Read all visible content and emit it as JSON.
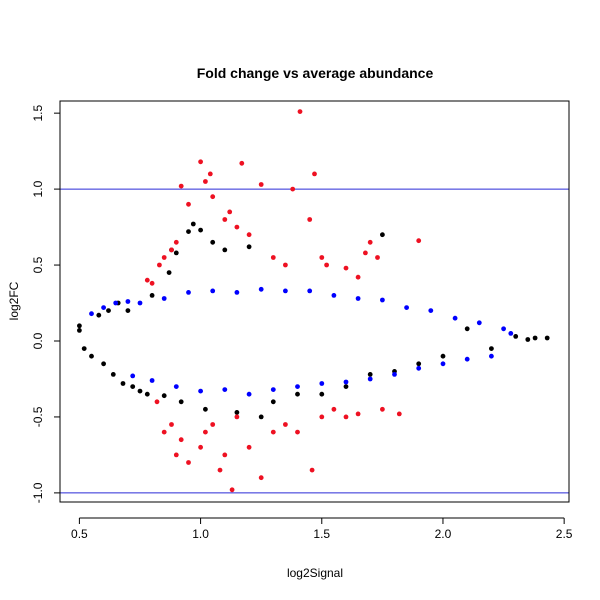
{
  "chart_data": {
    "type": "scatter",
    "title": "Fold change vs average abundance",
    "xlabel": "log2Signal",
    "ylabel": "log2FC",
    "xlim": [
      0.42,
      2.52
    ],
    "ylim": [
      -1.06,
      1.58
    ],
    "x_ticks": [
      "0.5",
      "1.0",
      "1.5",
      "2.0",
      "2.5"
    ],
    "y_ticks": [
      "-1.0",
      "-0.5",
      "0.0",
      "0.5",
      "1.0",
      "1.5"
    ],
    "grid": false,
    "legend": "none",
    "colors": {
      "black": "#000000",
      "blue": "#0000ff",
      "red": "#ee1122",
      "hline": "#2a2ad8"
    },
    "hlines": [
      1.0,
      -1.0
    ],
    "series": [
      {
        "color": "black",
        "points": [
          [
            0.5,
            0.1
          ],
          [
            0.5,
            0.07
          ],
          [
            0.52,
            -0.05
          ],
          [
            0.55,
            -0.1
          ],
          [
            0.58,
            0.17
          ],
          [
            0.6,
            -0.15
          ],
          [
            0.62,
            0.2
          ],
          [
            0.64,
            -0.22
          ],
          [
            0.66,
            0.25
          ],
          [
            0.68,
            -0.28
          ],
          [
            0.7,
            0.2
          ],
          [
            0.72,
            -0.3
          ],
          [
            0.75,
            -0.33
          ],
          [
            0.78,
            -0.35
          ],
          [
            0.8,
            0.3
          ],
          [
            0.85,
            -0.36
          ],
          [
            0.87,
            0.45
          ],
          [
            0.88,
            0.6
          ],
          [
            0.9,
            0.58
          ],
          [
            0.92,
            -0.4
          ],
          [
            0.95,
            0.72
          ],
          [
            0.97,
            0.77
          ],
          [
            1.0,
            0.73
          ],
          [
            1.02,
            -0.45
          ],
          [
            1.05,
            0.65
          ],
          [
            1.1,
            0.6
          ],
          [
            1.15,
            -0.47
          ],
          [
            1.2,
            0.62
          ],
          [
            1.25,
            -0.5
          ],
          [
            1.3,
            -0.4
          ],
          [
            1.4,
            -0.35
          ],
          [
            1.5,
            -0.35
          ],
          [
            1.6,
            -0.3
          ],
          [
            1.7,
            -0.22
          ],
          [
            1.75,
            0.7
          ],
          [
            1.8,
            -0.2
          ],
          [
            1.9,
            -0.15
          ],
          [
            2.0,
            -0.1
          ],
          [
            2.1,
            0.08
          ],
          [
            2.2,
            -0.05
          ],
          [
            2.3,
            0.03
          ],
          [
            2.35,
            0.01
          ],
          [
            2.38,
            0.02
          ],
          [
            2.43,
            0.02
          ]
        ]
      },
      {
        "color": "blue",
        "points": [
          [
            0.55,
            0.18
          ],
          [
            0.6,
            0.22
          ],
          [
            0.65,
            0.25
          ],
          [
            0.7,
            0.26
          ],
          [
            0.72,
            -0.23
          ],
          [
            0.75,
            0.25
          ],
          [
            0.8,
            -0.26
          ],
          [
            0.85,
            0.28
          ],
          [
            0.9,
            -0.3
          ],
          [
            0.95,
            0.32
          ],
          [
            1.0,
            -0.33
          ],
          [
            1.05,
            0.33
          ],
          [
            1.1,
            -0.32
          ],
          [
            1.15,
            0.32
          ],
          [
            1.2,
            -0.35
          ],
          [
            1.25,
            0.34
          ],
          [
            1.3,
            -0.32
          ],
          [
            1.35,
            0.33
          ],
          [
            1.4,
            -0.3
          ],
          [
            1.45,
            0.33
          ],
          [
            1.5,
            -0.28
          ],
          [
            1.55,
            0.3
          ],
          [
            1.6,
            -0.27
          ],
          [
            1.65,
            0.28
          ],
          [
            1.7,
            -0.25
          ],
          [
            1.75,
            0.27
          ],
          [
            1.8,
            -0.22
          ],
          [
            1.85,
            0.22
          ],
          [
            1.9,
            -0.18
          ],
          [
            1.95,
            0.2
          ],
          [
            2.0,
            -0.15
          ],
          [
            2.05,
            0.15
          ],
          [
            2.1,
            -0.12
          ],
          [
            2.15,
            0.12
          ],
          [
            2.2,
            -0.1
          ],
          [
            2.25,
            0.08
          ],
          [
            2.28,
            0.05
          ]
        ]
      },
      {
        "color": "red",
        "points": [
          [
            0.78,
            0.4
          ],
          [
            0.8,
            0.38
          ],
          [
            0.83,
            0.5
          ],
          [
            0.85,
            0.55
          ],
          [
            0.88,
            0.6
          ],
          [
            0.9,
            0.65
          ],
          [
            0.92,
            1.02
          ],
          [
            0.95,
            0.9
          ],
          [
            1.0,
            1.18
          ],
          [
            1.02,
            1.05
          ],
          [
            1.04,
            1.1
          ],
          [
            1.05,
            0.95
          ],
          [
            1.1,
            0.8
          ],
          [
            1.12,
            0.85
          ],
          [
            1.15,
            0.75
          ],
          [
            1.17,
            1.17
          ],
          [
            1.2,
            0.7
          ],
          [
            1.25,
            1.03
          ],
          [
            1.3,
            0.55
          ],
          [
            1.35,
            0.5
          ],
          [
            1.38,
            1.0
          ],
          [
            1.41,
            1.51
          ],
          [
            1.45,
            0.8
          ],
          [
            1.47,
            1.1
          ],
          [
            1.5,
            0.55
          ],
          [
            1.52,
            0.5
          ],
          [
            1.6,
            0.48
          ],
          [
            1.65,
            0.42
          ],
          [
            1.68,
            0.58
          ],
          [
            1.7,
            0.65
          ],
          [
            1.73,
            0.55
          ],
          [
            1.9,
            0.66
          ],
          [
            0.82,
            -0.4
          ],
          [
            0.85,
            -0.6
          ],
          [
            0.88,
            -0.55
          ],
          [
            0.9,
            -0.75
          ],
          [
            0.92,
            -0.65
          ],
          [
            0.95,
            -0.8
          ],
          [
            1.0,
            -0.7
          ],
          [
            1.02,
            -0.6
          ],
          [
            1.05,
            -0.55
          ],
          [
            1.08,
            -0.85
          ],
          [
            1.1,
            -0.75
          ],
          [
            1.13,
            -0.98
          ],
          [
            1.15,
            -0.5
          ],
          [
            1.2,
            -0.7
          ],
          [
            1.25,
            -0.9
          ],
          [
            1.3,
            -0.6
          ],
          [
            1.35,
            -0.55
          ],
          [
            1.4,
            -0.6
          ],
          [
            1.46,
            -0.85
          ],
          [
            1.5,
            -0.5
          ],
          [
            1.55,
            -0.45
          ],
          [
            1.6,
            -0.5
          ],
          [
            1.65,
            -0.48
          ],
          [
            1.75,
            -0.45
          ],
          [
            1.82,
            -0.48
          ]
        ]
      }
    ]
  }
}
